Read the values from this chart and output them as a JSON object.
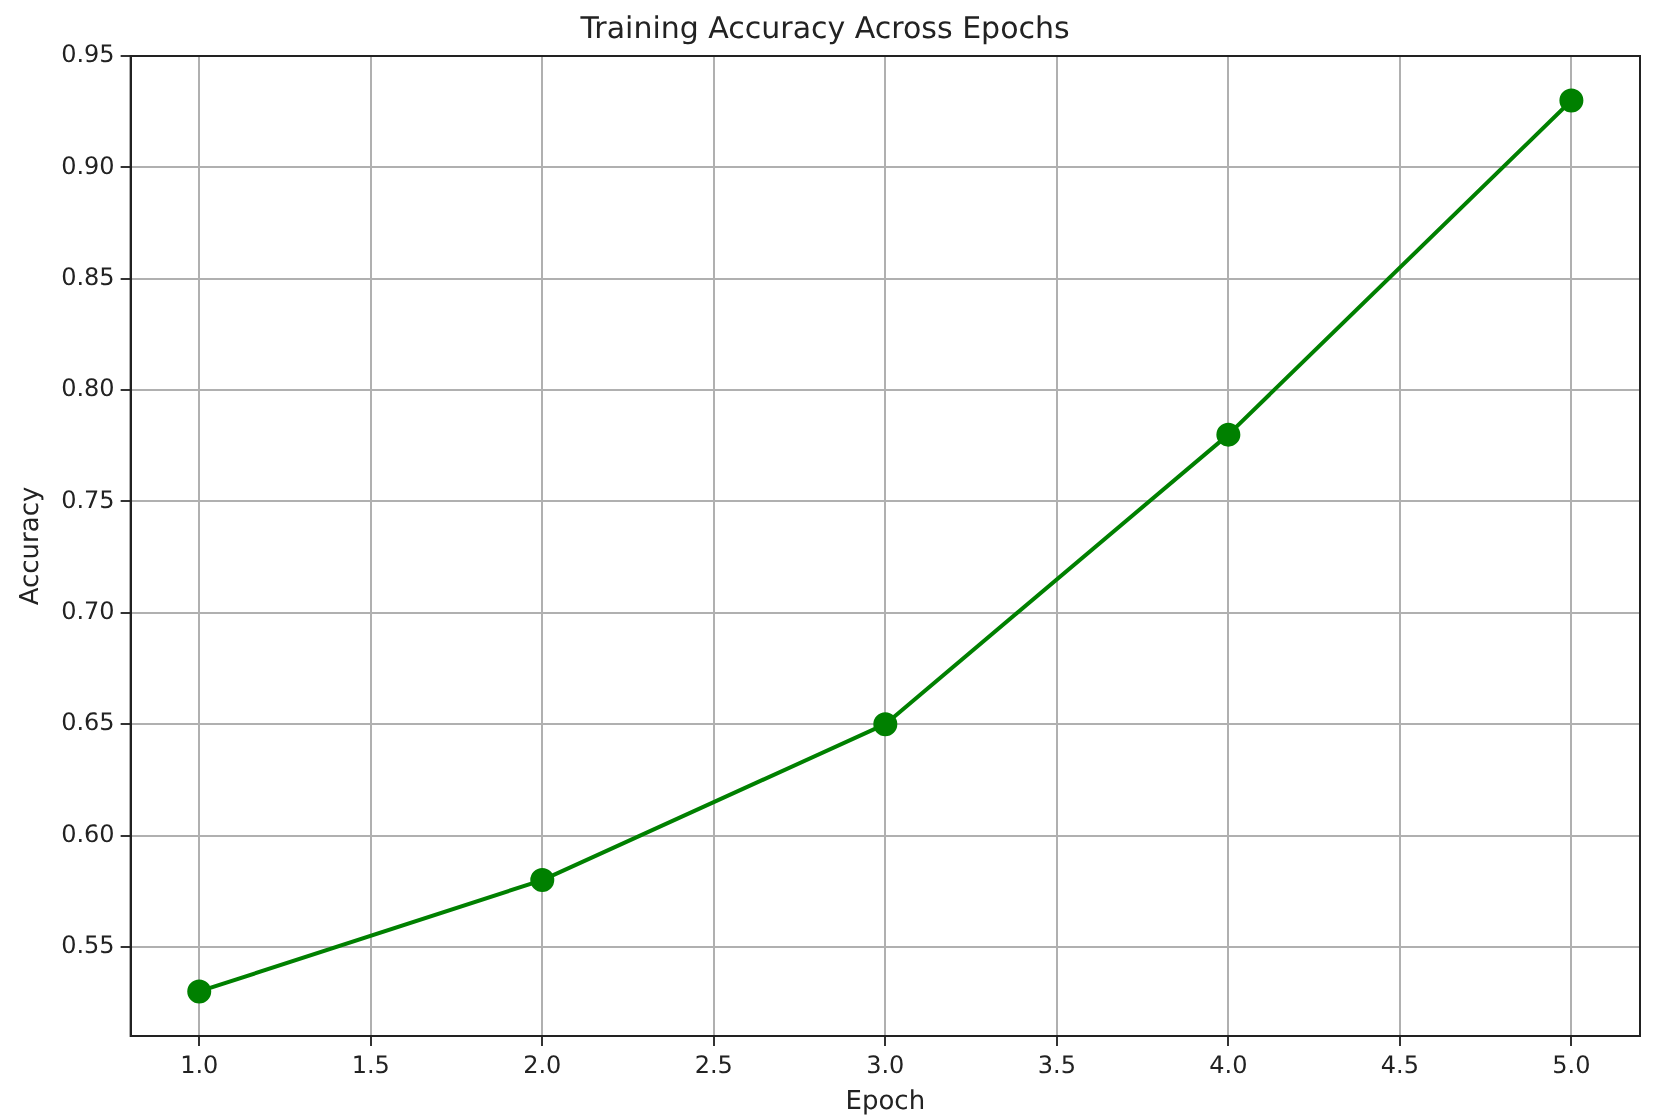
{
  "chart_data": {
    "type": "line",
    "title": "Training Accuracy Across Epochs",
    "xlabel": "Epoch",
    "ylabel": "Accuracy",
    "x": [
      1,
      2,
      3,
      4,
      5
    ],
    "series": [
      {
        "color": "#008000",
        "values": [
          0.53,
          0.58,
          0.65,
          0.78,
          0.93
        ]
      }
    ],
    "xlim": [
      0.8,
      5.2
    ],
    "xticks": [
      {
        "value": 1,
        "label": "1.0"
      },
      1.5,
      {
        "value": 2,
        "label": "2.0"
      },
      2.5,
      {
        "value": 3,
        "label": "3.0"
      },
      3.5,
      {
        "value": 4,
        "label": "4.0"
      },
      4.5,
      {
        "value": 5,
        "label": "5.0"
      }
    ],
    "ylim": [
      0.51,
      0.95
    ],
    "yticks": [
      0.55,
      {
        "value": 0.6,
        "label": "0.60"
      },
      0.65,
      {
        "value": 0.7,
        "label": "0.70"
      },
      0.75,
      {
        "value": 0.8,
        "label": "0.80"
      },
      0.85,
      {
        "value": 0.9,
        "label": "0.90"
      },
      0.95
    ],
    "grid": true,
    "marker": "circle",
    "line_style": "solid"
  }
}
